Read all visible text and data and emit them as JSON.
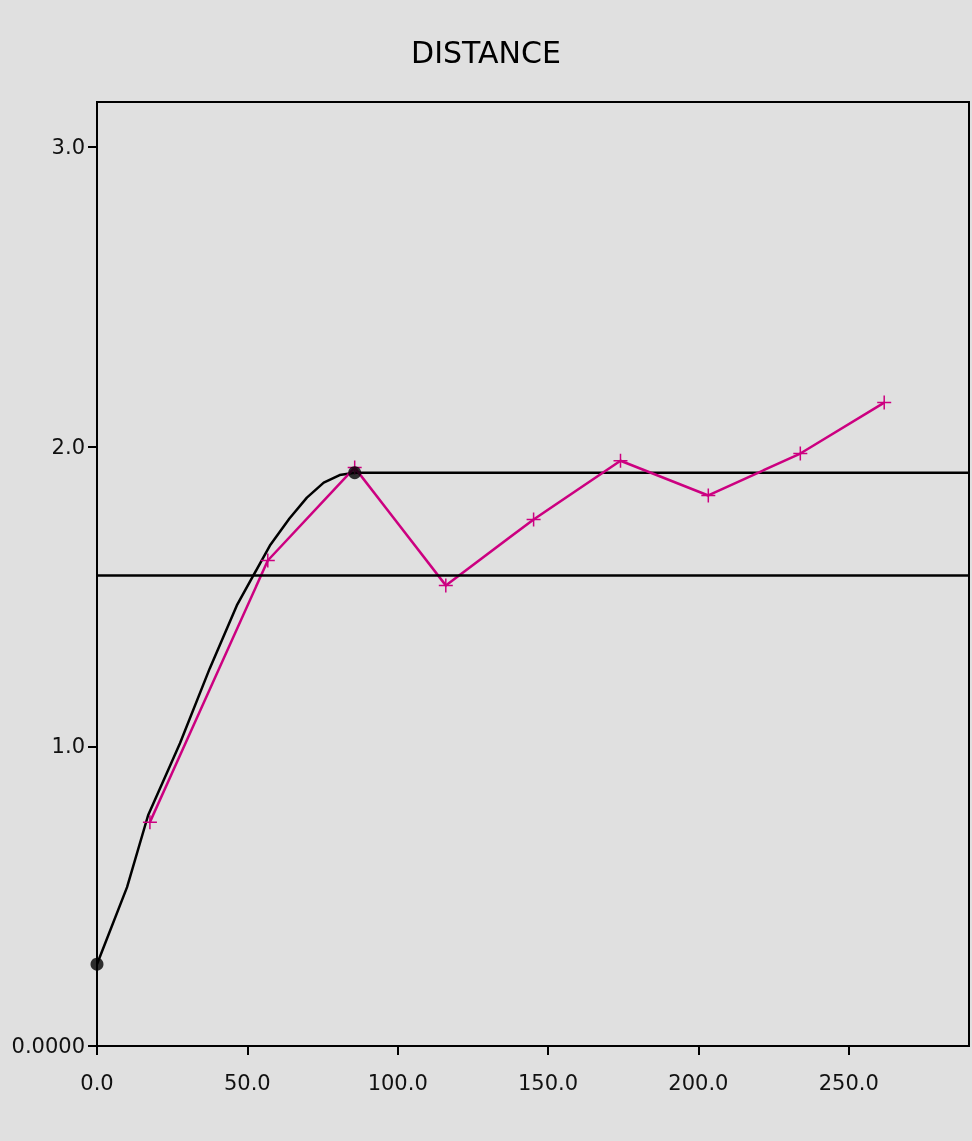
{
  "chart_data": {
    "type": "line",
    "title": "DISTANCE",
    "xlim": [
      0,
      290
    ],
    "xticks": [
      {
        "value": 0,
        "label": "0.0"
      },
      {
        "value": 50,
        "label": "50.0"
      },
      {
        "value": 100,
        "label": "100.0"
      },
      {
        "value": 150,
        "label": "150.0"
      },
      {
        "value": 200,
        "label": "200.0"
      },
      {
        "value": 250,
        "label": "250.0"
      }
    ],
    "ylim": [
      0,
      3.15
    ],
    "yticks": [
      {
        "value": 0,
        "label": "0.0000"
      },
      {
        "value": 1,
        "label": "1.0"
      },
      {
        "value": 2,
        "label": "2.0"
      },
      {
        "value": 3,
        "label": "3.0"
      }
    ],
    "grid": false,
    "series": [
      {
        "color": "#000000",
        "marker": "none",
        "x": [
          0,
          10,
          17,
          27.6,
          37.5,
          46.5,
          57.5,
          64,
          69.8,
          75.4,
          80.7,
          85.7
        ],
        "values": [
          0.273,
          0.53,
          0.77,
          1.01,
          1.26,
          1.47,
          1.67,
          1.76,
          1.83,
          1.88,
          1.905,
          1.913
        ]
      },
      {
        "color": "#000000",
        "marker": "none",
        "x": [
          85.7,
          290
        ],
        "values": [
          1.913,
          1.913
        ]
      },
      {
        "color": "#cc0080",
        "marker": "cross",
        "x": [
          17.6,
          56.8,
          85.7,
          116,
          145.2,
          174.1,
          203.3,
          233.9,
          261.8
        ],
        "values": [
          0.747,
          1.62,
          1.93,
          1.537,
          1.757,
          1.953,
          1.837,
          1.977,
          2.147
        ]
      },
      {
        "type": "scatter",
        "color": "#000000",
        "marker": "circle",
        "x": [
          0,
          85.7
        ],
        "values": [
          0.273,
          1.913
        ]
      }
    ],
    "ref_lines": [
      {
        "axis": "y",
        "value": 1.57,
        "color": "#000000"
      }
    ]
  }
}
